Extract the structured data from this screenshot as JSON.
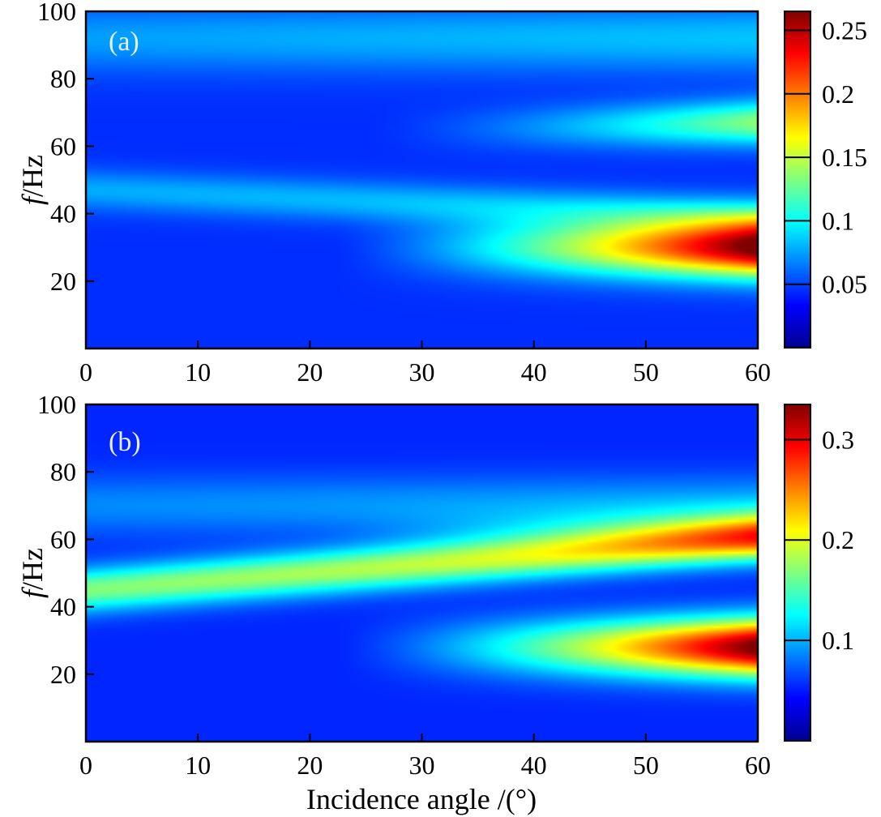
{
  "chart_data": [
    {
      "type": "heatmap",
      "panel_label": "(a)",
      "xlabel": "",
      "ylabel_italic": "f",
      "ylabel_unit": "/Hz",
      "xlim": [
        0,
        60
      ],
      "ylim": [
        0,
        100
      ],
      "xticks": [
        "0",
        "10",
        "20",
        "30",
        "40",
        "50",
        "60"
      ],
      "yticks": [
        "20",
        "40",
        "60",
        "80",
        "100"
      ],
      "colorbar": {
        "min": 0,
        "max": 0.265,
        "ticks": [
          "0.05",
          "0.1",
          "0.15",
          "0.2",
          "0.25"
        ]
      },
      "bands": [
        {
          "f_center": 30,
          "f_width": 8.5,
          "peak_value": 0.265,
          "angle_onset": 22
        },
        {
          "f_center": 63,
          "f_width": 6.5,
          "peak_value": 0.105,
          "angle_onset": 25,
          "f_center_shift_at_60deg": 4
        },
        {
          "f_center": 47,
          "f_width": 6,
          "peak_value": 0.05,
          "angle_onset": 0,
          "f_center_shift_at_60deg": -8
        },
        {
          "f_center": 92,
          "f_width": 10,
          "peak_value": 0.045,
          "angle_onset": 0
        }
      ]
    },
    {
      "type": "heatmap",
      "panel_label": "(b)",
      "xlabel": "Incidence angle /(°)",
      "ylabel_italic": "f",
      "ylabel_unit": "/Hz",
      "xlim": [
        0,
        60
      ],
      "ylim": [
        0,
        100
      ],
      "xticks": [
        "0",
        "10",
        "20",
        "30",
        "40",
        "50",
        "60"
      ],
      "yticks": [
        "20",
        "40",
        "60",
        "80",
        "100"
      ],
      "colorbar": {
        "min": 0,
        "max": 0.335,
        "ticks": [
          "0.1",
          "0.2",
          "0.3"
        ]
      },
      "bands": [
        {
          "f_center": 28,
          "f_width": 8.5,
          "peak_value": 0.335,
          "angle_onset": 22
        },
        {
          "f_center": 45,
          "f_width": 6.5,
          "peak_value": 0.175,
          "angle_onset": 0,
          "f_center_shift_at_60deg": 15
        },
        {
          "f_center": 62,
          "f_width": 7,
          "peak_value": 0.09,
          "angle_onset": 20
        },
        {
          "f_center": 70,
          "f_width": 9,
          "peak_value": 0.05,
          "angle_onset": 0
        }
      ]
    }
  ]
}
